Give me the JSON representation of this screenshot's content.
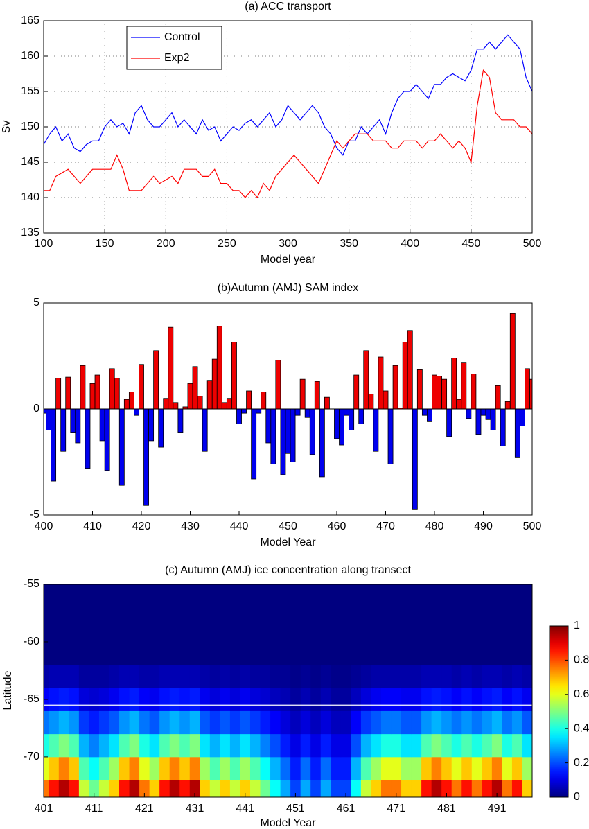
{
  "chart_data": [
    {
      "type": "line",
      "title": "(a) ACC transport",
      "xlabel": "Model year",
      "ylabel": "Sv",
      "x": [
        100,
        105,
        110,
        115,
        120,
        125,
        130,
        135,
        140,
        145,
        150,
        155,
        160,
        165,
        170,
        175,
        180,
        185,
        190,
        195,
        200,
        205,
        210,
        215,
        220,
        225,
        230,
        235,
        240,
        245,
        250,
        255,
        260,
        265,
        270,
        275,
        280,
        285,
        290,
        295,
        300,
        305,
        310,
        315,
        320,
        325,
        330,
        335,
        340,
        345,
        350,
        355,
        360,
        365,
        370,
        375,
        380,
        385,
        390,
        395,
        400,
        405,
        410,
        415,
        420,
        425,
        430,
        435,
        440,
        445,
        450,
        455,
        460,
        465,
        470,
        475,
        480,
        485,
        490,
        495,
        500
      ],
      "series": [
        {
          "name": "Control",
          "color": "#0000ff",
          "values": [
            147.5,
            149,
            150,
            148,
            149,
            147,
            146.5,
            147.5,
            148,
            148,
            150,
            151,
            150,
            150.5,
            149,
            152,
            153,
            151,
            150,
            150,
            151,
            152,
            150,
            151,
            150,
            149,
            151,
            149.5,
            150,
            148,
            149,
            150,
            149.5,
            150.5,
            151,
            150,
            151,
            152,
            150,
            151,
            153,
            152,
            151,
            152,
            153,
            152,
            150,
            149,
            147,
            146,
            148,
            148,
            150,
            149,
            150,
            151,
            149,
            152,
            154,
            155,
            155,
            156,
            155,
            154,
            156,
            156,
            157,
            157.5,
            157,
            156.5,
            158,
            161,
            161,
            162,
            161,
            162,
            163,
            162,
            161,
            157,
            155
          ]
        },
        {
          "name": "Exp2",
          "color": "#ff0000",
          "values": [
            141,
            141,
            143,
            143.5,
            144,
            143,
            142,
            143,
            144,
            144,
            144,
            144,
            146,
            144,
            141,
            141,
            141,
            142,
            143,
            142,
            142.5,
            143,
            142,
            144,
            144,
            144,
            143,
            143,
            144,
            142,
            142,
            141,
            141,
            140,
            141,
            140,
            142,
            141,
            143,
            144,
            145,
            146,
            145,
            144,
            143,
            142,
            144,
            146,
            148,
            147,
            148,
            149,
            149,
            149,
            148,
            148,
            148,
            147,
            147,
            148,
            148,
            148,
            147,
            148,
            148,
            149,
            148,
            147,
            148,
            147,
            145,
            153,
            158,
            157,
            152,
            151,
            151,
            151,
            150,
            150,
            149
          ]
        }
      ],
      "xlim": [
        100,
        500
      ],
      "ylim": [
        135,
        165
      ],
      "xticks": [
        100,
        150,
        200,
        250,
        300,
        350,
        400,
        450,
        500
      ],
      "yticks": [
        135,
        140,
        145,
        150,
        155,
        160,
        165
      ],
      "grid": true,
      "legend": "upper left"
    },
    {
      "type": "bar",
      "title": "(b)Autumn (AMJ) SAM index",
      "xlabel": "Model Year",
      "x": [
        400,
        401,
        402,
        403,
        404,
        405,
        406,
        407,
        408,
        409,
        410,
        411,
        412,
        413,
        414,
        415,
        416,
        417,
        418,
        419,
        420,
        421,
        422,
        423,
        424,
        425,
        426,
        427,
        428,
        429,
        430,
        431,
        432,
        433,
        434,
        435,
        436,
        437,
        438,
        439,
        440,
        441,
        442,
        443,
        444,
        445,
        446,
        447,
        448,
        449,
        450,
        451,
        452,
        453,
        454,
        455,
        456,
        457,
        458,
        459,
        460,
        461,
        462,
        463,
        464,
        465,
        466,
        467,
        468,
        469,
        470,
        471,
        472,
        473,
        474,
        475,
        476,
        477,
        478,
        479,
        480,
        481,
        482,
        483,
        484,
        485,
        486,
        487,
        488,
        489,
        490,
        491,
        492,
        493,
        494,
        495,
        496,
        497,
        498,
        499,
        500
      ],
      "values": [
        -0.2,
        -1.0,
        -3.4,
        1.45,
        -2.0,
        1.5,
        -1.1,
        -1.6,
        2.05,
        -2.8,
        1.2,
        1.6,
        -1.5,
        -2.9,
        1.9,
        1.45,
        -3.6,
        0.45,
        0.8,
        -0.3,
        2.1,
        -4.55,
        -1.5,
        2.75,
        -1.8,
        0.5,
        3.85,
        0.3,
        -1.1,
        0.1,
        1.2,
        2.0,
        0.6,
        -2.0,
        1.35,
        2.35,
        3.9,
        0.3,
        0.5,
        3.15,
        -0.7,
        -0.2,
        0.85,
        -3.3,
        -0.2,
        0.8,
        -1.6,
        -2.6,
        2.3,
        -3.1,
        -2.1,
        -2.5,
        -0.3,
        1.4,
        -0.4,
        -2.15,
        1.3,
        -3.2,
        0.55,
        0.0,
        -1.4,
        -1.7,
        -0.3,
        -1.0,
        1.6,
        -0.7,
        2.75,
        0.7,
        -2.0,
        2.45,
        0.85,
        -2.6,
        2.05,
        0.05,
        3.15,
        3.7,
        -4.75,
        1.85,
        -0.3,
        -0.6,
        1.6,
        1.55,
        1.4,
        -1.3,
        2.4,
        0.45,
        2.2,
        -0.45,
        1.65,
        -1.2,
        -0.3,
        -0.5,
        -1.0,
        1.1,
        -1.75,
        0.35,
        4.5,
        -2.3,
        -0.8,
        1.9,
        1.4
      ],
      "positive_color": "#ee0000",
      "negative_color": "#0000ee",
      "xlim": [
        400,
        500
      ],
      "ylim": [
        -5,
        5
      ],
      "xticks": [
        400,
        410,
        420,
        430,
        440,
        450,
        460,
        470,
        480,
        490,
        500
      ],
      "yticks": [
        -5,
        0,
        5
      ],
      "grid": false
    },
    {
      "type": "heatmap",
      "title": "(c) Autumn (AMJ) ice concentration along transect",
      "xlabel": "Model Year",
      "ylabel": "Latitude",
      "x": [
        401,
        403,
        405,
        407,
        409,
        411,
        413,
        415,
        417,
        419,
        421,
        423,
        425,
        427,
        429,
        431,
        433,
        435,
        437,
        439,
        441,
        443,
        445,
        447,
        449,
        451,
        453,
        455,
        457,
        459,
        461,
        463,
        465,
        467,
        469,
        471,
        473,
        475,
        477,
        479,
        481,
        483,
        485,
        487,
        489,
        491,
        493,
        495,
        497,
        499
      ],
      "y": [
        -73,
        -71,
        -69,
        -67,
        -65,
        -63
      ],
      "z": [
        [
          0.76,
          0.86,
          0.95,
          0.86,
          0.57,
          0.48,
          0.57,
          0.67,
          0.86,
          0.95,
          0.76,
          0.67,
          0.86,
          0.95,
          0.86,
          0.95,
          0.67,
          0.57,
          0.67,
          0.57,
          0.67,
          0.57,
          0.48,
          0.38,
          0.29,
          0.19,
          0.29,
          0.19,
          0.29,
          0.19,
          0.19,
          0.38,
          0.57,
          0.67,
          0.76,
          0.76,
          0.67,
          0.67,
          0.86,
          0.95,
          0.86,
          0.76,
          0.86,
          0.76,
          0.86,
          0.95,
          0.76,
          0.86,
          0.67,
          0.57
        ],
        [
          0.6,
          0.68,
          0.75,
          0.68,
          0.45,
          0.38,
          0.45,
          0.53,
          0.68,
          0.75,
          0.6,
          0.53,
          0.68,
          0.75,
          0.68,
          0.75,
          0.53,
          0.45,
          0.53,
          0.45,
          0.53,
          0.45,
          0.38,
          0.3,
          0.23,
          0.15,
          0.23,
          0.15,
          0.23,
          0.15,
          0.15,
          0.3,
          0.45,
          0.53,
          0.6,
          0.6,
          0.53,
          0.53,
          0.68,
          0.75,
          0.68,
          0.6,
          0.68,
          0.6,
          0.68,
          0.75,
          0.6,
          0.68,
          0.53,
          0.45
        ],
        [
          0.4,
          0.45,
          0.5,
          0.45,
          0.3,
          0.25,
          0.3,
          0.35,
          0.45,
          0.5,
          0.4,
          0.35,
          0.45,
          0.5,
          0.45,
          0.5,
          0.35,
          0.3,
          0.35,
          0.3,
          0.35,
          0.3,
          0.25,
          0.2,
          0.15,
          0.1,
          0.15,
          0.1,
          0.15,
          0.1,
          0.1,
          0.2,
          0.3,
          0.35,
          0.4,
          0.4,
          0.35,
          0.35,
          0.45,
          0.5,
          0.45,
          0.4,
          0.45,
          0.4,
          0.45,
          0.5,
          0.4,
          0.45,
          0.35,
          0.3
        ],
        [
          0.24,
          0.27,
          0.3,
          0.27,
          0.18,
          0.15,
          0.18,
          0.21,
          0.27,
          0.3,
          0.24,
          0.21,
          0.27,
          0.3,
          0.27,
          0.3,
          0.21,
          0.18,
          0.21,
          0.18,
          0.21,
          0.18,
          0.15,
          0.12,
          0.09,
          0.06,
          0.09,
          0.06,
          0.09,
          0.06,
          0.06,
          0.12,
          0.18,
          0.21,
          0.24,
          0.24,
          0.21,
          0.21,
          0.27,
          0.3,
          0.27,
          0.24,
          0.27,
          0.24,
          0.27,
          0.3,
          0.24,
          0.27,
          0.21,
          0.18
        ],
        [
          0.12,
          0.14,
          0.15,
          0.14,
          0.09,
          0.08,
          0.09,
          0.11,
          0.14,
          0.15,
          0.12,
          0.11,
          0.14,
          0.15,
          0.14,
          0.15,
          0.11,
          0.09,
          0.11,
          0.09,
          0.11,
          0.09,
          0.08,
          0.06,
          0.05,
          0.03,
          0.05,
          0.03,
          0.05,
          0.03,
          0.03,
          0.06,
          0.09,
          0.11,
          0.12,
          0.12,
          0.11,
          0.11,
          0.14,
          0.15,
          0.14,
          0.12,
          0.14,
          0.12,
          0.14,
          0.15,
          0.12,
          0.14,
          0.11,
          0.09
        ],
        [
          0.04,
          0.05,
          0.05,
          0.05,
          0.03,
          0.03,
          0.03,
          0.04,
          0.05,
          0.05,
          0.04,
          0.04,
          0.05,
          0.05,
          0.05,
          0.05,
          0.04,
          0.03,
          0.04,
          0.03,
          0.04,
          0.03,
          0.03,
          0.02,
          0.02,
          0.01,
          0.02,
          0.01,
          0.02,
          0.01,
          0.01,
          0.02,
          0.03,
          0.04,
          0.04,
          0.04,
          0.04,
          0.04,
          0.05,
          0.05,
          0.05,
          0.04,
          0.05,
          0.04,
          0.05,
          0.05,
          0.04,
          0.05,
          0.04,
          0.03
        ]
      ],
      "colormap": "jet",
      "colorbar": {
        "lim": [
          0,
          1
        ],
        "ticks": [
          0,
          0.2,
          0.4,
          0.6,
          0.8,
          1
        ]
      },
      "reference_line": {
        "value": -65.5,
        "color": "#ffffff"
      },
      "xlim": [
        401,
        498
      ],
      "ylim": [
        -73.5,
        -55
      ],
      "xticks": [
        401,
        411,
        421,
        431,
        441,
        451,
        461,
        471,
        481,
        491
      ],
      "yticks": [
        -70,
        -65,
        -60,
        -55
      ],
      "grid": false
    }
  ]
}
